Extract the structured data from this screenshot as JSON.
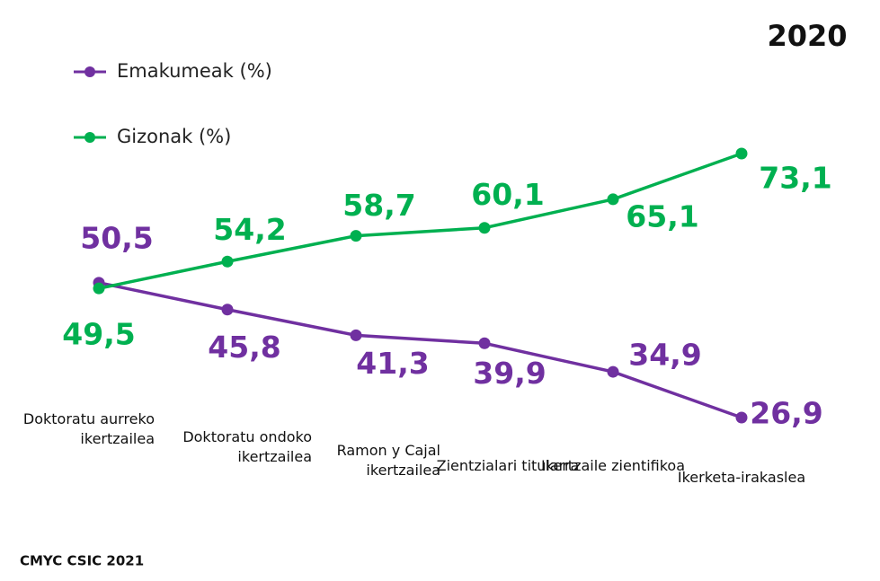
{
  "chart_data": {
    "type": "line",
    "title": "2020",
    "source": "CMYC CSIC 2021",
    "categories": [
      "Doktoratu aurreko ikertzailea",
      "Doktoratu ondoko ikertzailea",
      "Ramon y Cajal ikertzailea",
      "Zientzialari titularra",
      "Ikertzaile zientifikoa",
      "Ikerketa-irakaslea"
    ],
    "series": [
      {
        "name": "Emakumeak (%)",
        "color": "#7030a0",
        "values": [
          50.5,
          45.8,
          41.3,
          39.9,
          34.9,
          26.9
        ],
        "value_labels": [
          "50,5",
          "45,8",
          "41,3",
          "39,9",
          "34,9",
          "26,9"
        ]
      },
      {
        "name": "Gizonak (%)",
        "color": "#00b050",
        "values": [
          49.5,
          54.2,
          58.7,
          60.1,
          65.1,
          73.1
        ],
        "value_labels": [
          "49,5",
          "54,2",
          "58,7",
          "60,1",
          "65,1",
          "73,1"
        ]
      }
    ]
  }
}
